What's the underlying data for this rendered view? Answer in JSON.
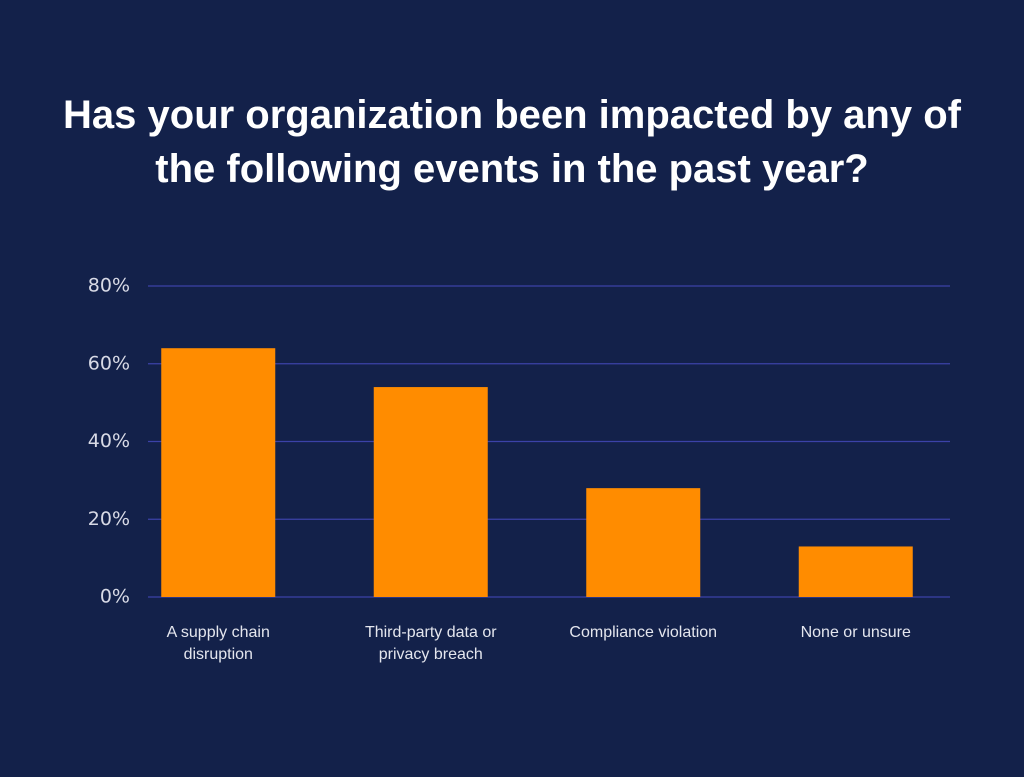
{
  "chart_data": {
    "type": "bar",
    "title": "Has your organization been impacted by any of the following events in the past year?",
    "categories": [
      "A supply chain disruption",
      "Third-party data or privacy breach",
      "Compliance violation",
      "None or unsure"
    ],
    "values": [
      64,
      54,
      28,
      13
    ],
    "color": "#ff8c00",
    "ylim": [
      0,
      80
    ],
    "yticks": [
      {
        "value": 0,
        "label": "0%"
      },
      {
        "value": 20,
        "label": "20%"
      },
      {
        "value": 40,
        "label": "40%"
      },
      {
        "value": 60,
        "label": "60%"
      },
      {
        "value": 80,
        "label": "80%"
      }
    ],
    "grid": true
  }
}
